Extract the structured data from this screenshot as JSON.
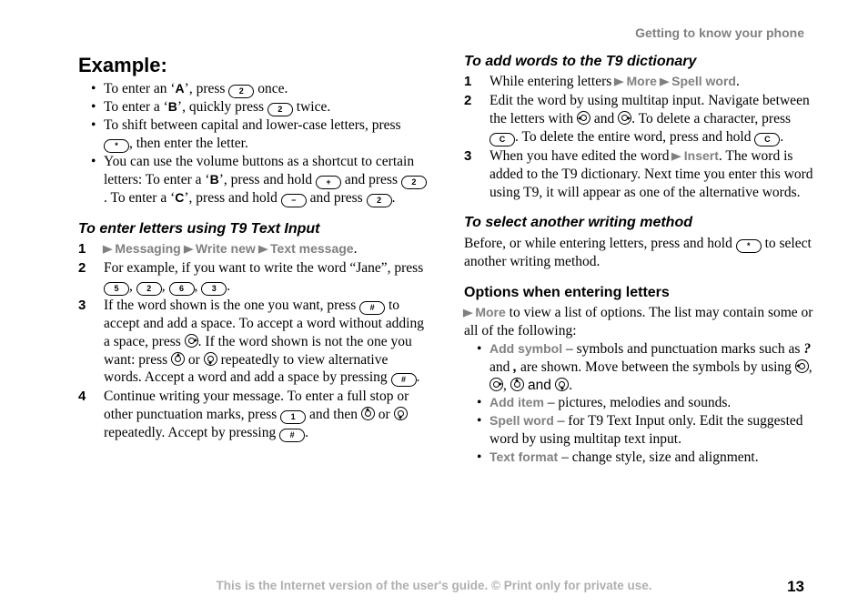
{
  "header": {
    "title": "Getting to know your phone"
  },
  "col1": {
    "example_heading": "Example:",
    "ex1_a": "To enter an ‘",
    "ex1_letter": "A",
    "ex1_b": "’, press ",
    "ex1_key": "2",
    "ex1_c": " once.",
    "ex2_a": "To enter a ‘",
    "ex2_letter": "B",
    "ex2_b": "’, quickly press ",
    "ex2_key": "2",
    "ex2_c": " twice.",
    "ex3_a": "To shift between capital and lower-case letters, press ",
    "ex3_key": "*",
    "ex3_b": ", then enter the letter.",
    "ex4_a": "You can use the volume buttons as a shortcut to certain letters: To enter a ‘",
    "ex4_letter1": "B",
    "ex4_b": "’, press and hold ",
    "ex4_keyplus": "+",
    "ex4_c": " and press ",
    "ex4_key2": "2",
    "ex4_d": ". To enter a ‘",
    "ex4_letter2": "C",
    "ex4_e": "’, press and hold ",
    "ex4_keyminus": "−",
    "ex4_f": " and press ",
    "ex4_key2b": "2",
    "ex4_g": ".",
    "t9_heading": "To enter letters using T9 Text Input",
    "s1_m1": "Messaging",
    "s1_m2": "Write new",
    "s1_m3": "Text message",
    "s1_end": ".",
    "s2_a": "For example, if you want to write the word “Jane”, press ",
    "s2_k1": "5",
    "s2_k2": "2",
    "s2_k3": "6",
    "s2_k4": "3",
    "s2_b": ".",
    "s3_a": "If the word shown is the one you want, press ",
    "s3_key1": "#",
    "s3_b": " to accept and add a space. To accept a word without adding a space, press ",
    "s3_c": ". If the word shown is not the one you want: press ",
    "s3_d": " or ",
    "s3_e": " repeatedly to view alternative words. Accept a word and add a space by pressing ",
    "s3_key2": "#",
    "s3_f": ".",
    "s4_a": "Continue writing your message. To enter a full stop or other punctuation marks, press ",
    "s4_key1": "1",
    "s4_b": " and then ",
    "s4_c": " or ",
    "s4_d": " repeatedly. Accept by pressing ",
    "s4_key2": "#",
    "s4_e": "."
  },
  "col2": {
    "add_heading": "To add words to the T9 dictionary",
    "a1_a": "While entering letters ",
    "a1_m1": "More",
    "a1_m2": "Spell word",
    "a1_b": ".",
    "a2_a": "Edit the word by using multitap input. Navigate between the letters with ",
    "a2_b": " and ",
    "a2_c": ". To delete a character, press ",
    "a2_keyC1": "C",
    "a2_d": ". To delete the entire word, press and hold ",
    "a2_keyC2": "C",
    "a2_e": ".",
    "a3_a": "When you have edited the word ",
    "a3_m1": "Insert",
    "a3_b": ". The word is added to the T9 dictionary. Next time you enter this word using T9, it will appear as one of the alternative words.",
    "sel_heading": "To select another writing method",
    "sel_a": "Before, or while entering letters, press and hold ",
    "sel_key": "*",
    "sel_b": " to select another writing method.",
    "opt_heading": "Options when entering letters",
    "opt_intro_m": "More",
    "opt_intro": " to view a list of options. The list may contain some or all of the following:",
    "o1_m": "Add symbol",
    "o1_a": " – symbols and punctuation marks such as ",
    "o1_q": "?",
    "o1_b": " and ",
    "o1_comma": ",",
    "o1_c": " are shown. Move between the symbols by using ",
    "o1_and": " and ",
    "o1_d": ".",
    "o2_m": "Add item",
    "o2_a": " – pictures, melodies and sounds.",
    "o3_m": "Spell word",
    "o3_a": " – for T9 Text Input only. Edit the suggested word by using multitap text input.",
    "o4_m": "Text format",
    "o4_a": " – change style, size and alignment."
  },
  "footer": {
    "text": "This is the Internet version of the user's guide. © Print only for private use.",
    "page": "13"
  }
}
